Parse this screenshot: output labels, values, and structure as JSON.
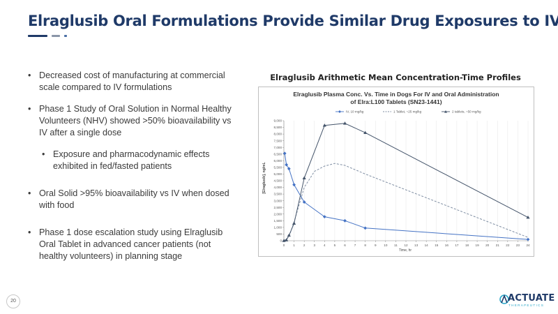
{
  "slide": {
    "title": "Elraglusib Oral Formulations Provide Similar Drug Exposures to IV",
    "page_number": "20",
    "colors": {
      "title": "#1f3a68",
      "accent": "#2aa7c9",
      "iv_series": "#4472c4",
      "oral_series": "#44546a"
    }
  },
  "bullets": [
    {
      "text": "Decreased cost of manufacturing at commercial scale compared to IV formulations",
      "level": 1
    },
    {
      "text": "Phase 1 Study of Oral Solution in Normal Healthy Volunteers (NHV) showed >50% bioavailability vs IV after a single dose",
      "level": 1
    },
    {
      "text": "Exposure and pharmacodynamic effects exhibited in fed/fasted patients",
      "level": 2
    },
    {
      "text": "Oral Solid >95% bioavailability vs IV when dosed with food",
      "level": 1
    },
    {
      "text": "Phase 1 dose escalation study using Elraglusib Oral Tablet in advanced cancer patients (not healthy volunteers) in planning stage",
      "level": 1
    }
  ],
  "chart_section": {
    "heading": "Elraglusib Arithmetic Mean Concentration-Time Profiles"
  },
  "logo": {
    "name": "ACTUATE",
    "sub": "THERAPEUTICS"
  },
  "chart_data": {
    "type": "line",
    "title_lines": [
      "Elraglusib Plasma Conc. Vs. Time in Dogs For IV and Oral Administration",
      "of Elra:L100 Tablets (SN23-1441)"
    ],
    "xlabel": "Time, hr",
    "ylabel": "[Elraglusib], ng/mL",
    "xlim": [
      0,
      24
    ],
    "ylim": [
      0,
      9000
    ],
    "x_ticks": [
      "0",
      "1",
      "2",
      "3",
      "4",
      "5",
      "6",
      "7",
      "8",
      "9",
      "10",
      "11",
      "12",
      "13",
      "14",
      "15",
      "16",
      "17",
      "18",
      "19",
      "20",
      "21",
      "22",
      "23",
      "24"
    ],
    "y_ticks": [
      "0",
      "500",
      "1,000",
      "1,500",
      "2,000",
      "2,500",
      "3,000",
      "3,500",
      "4,000",
      "4,500",
      "5,000",
      "5,500",
      "6,000",
      "6,500",
      "7,000",
      "7,500",
      "8,000",
      "8,500",
      "9,000"
    ],
    "grid": "vertical",
    "legend_position": "top",
    "series": [
      {
        "name": "IV, 10 mg/kg",
        "style": "solid",
        "marker": "diamond",
        "color": "#4472c4",
        "x": [
          0.083,
          0.25,
          0.5,
          1,
          2,
          4,
          6,
          8,
          24
        ],
        "y": [
          6550,
          5700,
          5400,
          4200,
          2900,
          1800,
          1500,
          950,
          100
        ]
      },
      {
        "name": "1 Tablet, ~25 mg/kg",
        "style": "dashed",
        "marker": "none",
        "color": "#7f8ea3",
        "x": [
          0,
          0.5,
          1,
          2,
          3,
          4,
          5,
          6,
          8,
          24
        ],
        "y": [
          0,
          300,
          1400,
          4000,
          5200,
          5600,
          5800,
          5650,
          5000,
          250
        ]
      },
      {
        "name": "2 tablets, ~50 mg/kg",
        "style": "solid",
        "marker": "triangle",
        "color": "#44546a",
        "x": [
          0,
          0.25,
          0.5,
          1,
          2,
          4,
          6,
          8,
          24
        ],
        "y": [
          0,
          50,
          400,
          1300,
          4700,
          8650,
          8800,
          8100,
          1750
        ]
      }
    ]
  }
}
